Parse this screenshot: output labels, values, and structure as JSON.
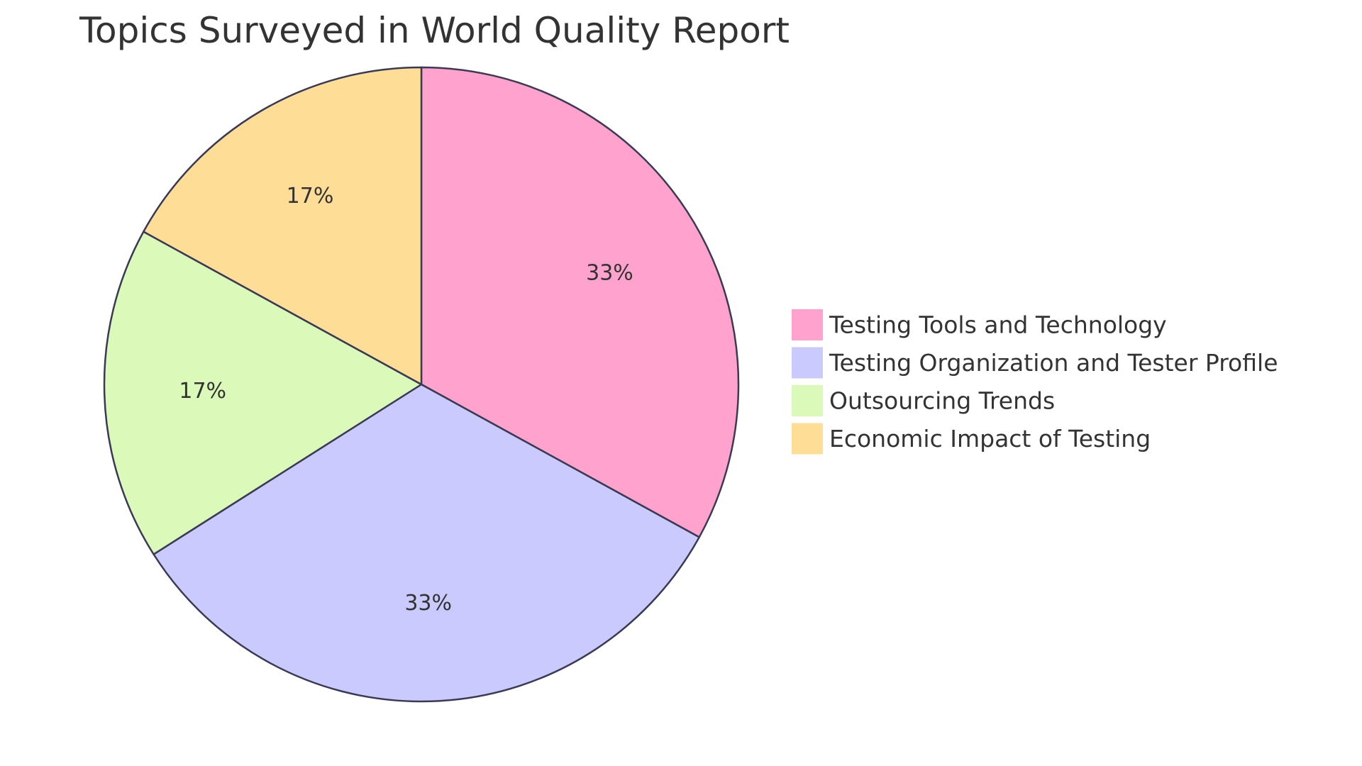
{
  "chart_data": {
    "type": "pie",
    "title": "Topics Surveyed in World Quality Report",
    "slices": [
      {
        "label": "Testing Tools and Technology",
        "value": 33,
        "display": "33%",
        "color": "#FFA3CE"
      },
      {
        "label": "Testing Organization and Tester Profile",
        "value": 33,
        "display": "33%",
        "color": "#CACAFF"
      },
      {
        "label": "Outsourcing Trends",
        "value": 17,
        "display": "17%",
        "color": "#DBF9B8"
      },
      {
        "label": "Economic Impact of Testing",
        "value": 17,
        "display": "17%",
        "color": "#FEDD96"
      }
    ],
    "legend_position": "right",
    "stroke_color": "#3A3A55"
  }
}
